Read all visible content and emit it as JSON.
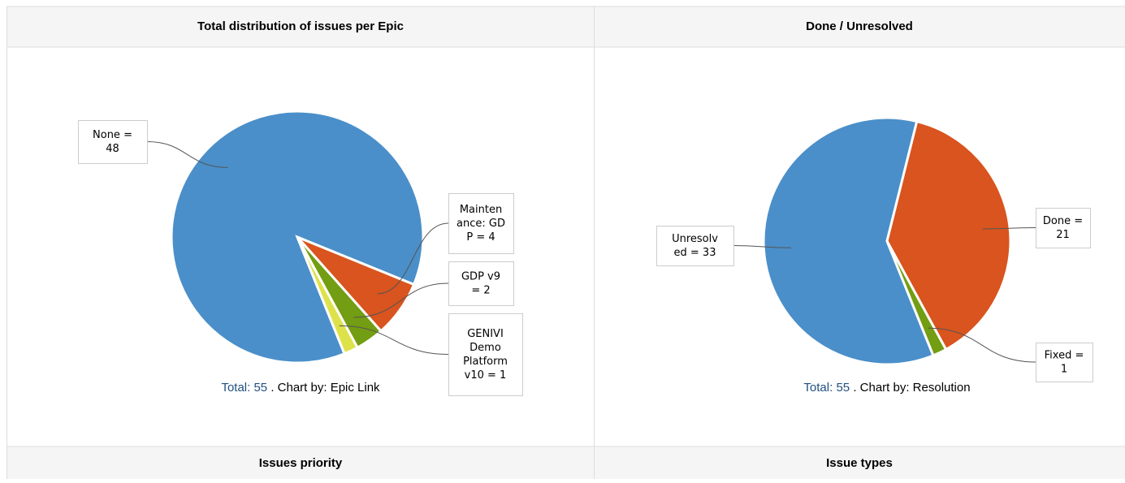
{
  "chart_data": [
    {
      "type": "pie",
      "title": "Total distribution of issues per Epic",
      "categories": [
        "None",
        "Maintenance: GDP",
        "GDP v9",
        "GENIVI Demo Platform v10"
      ],
      "values": [
        48,
        4,
        2,
        1
      ],
      "value_labels": [
        "None = 48",
        "Maintenance: GDP = 4",
        "GDP v9 = 2",
        "GENIVI Demo Platform v10 = 1"
      ],
      "colors": [
        "#4a8fc9",
        "#d9541e",
        "#739d12",
        "#dee24a"
      ],
      "total_label": "Total:",
      "total": 55,
      "footer": ". Chart by: Epic Link"
    },
    {
      "type": "pie",
      "title": "Done / Unresolved",
      "categories": [
        "Unresolved",
        "Done",
        "Fixed"
      ],
      "values": [
        33,
        21,
        1
      ],
      "value_labels": [
        "Unresolved = 33",
        "Done = 21",
        "Fixed = 1"
      ],
      "colors": [
        "#4a8fc9",
        "#d9541e",
        "#739d12"
      ],
      "total_label": "Total:",
      "total": 55,
      "footer": ". Chart by: Resolution"
    }
  ],
  "panels": [
    {
      "title": "Issues priority"
    },
    {
      "title": "Issue types"
    }
  ]
}
